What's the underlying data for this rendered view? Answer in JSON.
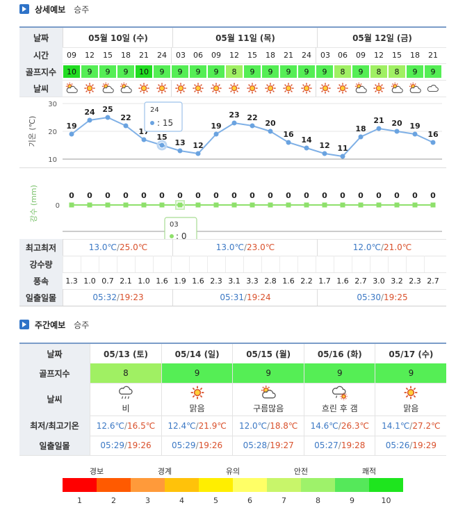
{
  "detail_section": {
    "title": "상세예보",
    "location": "승주"
  },
  "weekly_section": {
    "title": "주간예보",
    "location": "승주"
  },
  "row_labels": {
    "date": "날짜",
    "time": "시간",
    "golf": "골프지수",
    "weather": "날씨",
    "temp_axis": "기온 (℃)",
    "rain_axis": "강수 (mm)",
    "minmax": "최고최저",
    "precip": "강수량",
    "wind": "풍속",
    "sun": "일출일몰"
  },
  "days": [
    {
      "label": "05월 10일 (수)",
      "min": "13.0℃",
      "max": "25.0℃",
      "sunrise": "05:32",
      "sunset": "19:23"
    },
    {
      "label": "05월 11일 (목)",
      "min": "13.0℃",
      "max": "23.0℃",
      "sunrise": "05:31",
      "sunset": "19:24"
    },
    {
      "label": "05월 12일 (금)",
      "min": "12.0℃",
      "max": "21.0℃",
      "sunrise": "05:30",
      "sunset": "19:25"
    }
  ],
  "hours": [
    "09",
    "12",
    "15",
    "18",
    "21",
    "24",
    "03",
    "06",
    "09",
    "12",
    "15",
    "18",
    "21",
    "24",
    "03",
    "06",
    "09",
    "12",
    "15",
    "18",
    "21"
  ],
  "golf_index": [
    10,
    9,
    9,
    9,
    10,
    9,
    9,
    9,
    9,
    8,
    9,
    9,
    9,
    9,
    9,
    8,
    9,
    8,
    8,
    9,
    9
  ],
  "weather_icons": [
    "sun-cloud-icon",
    "sun-icon",
    "sun-cloud-icon",
    "sun-cloud-icon",
    "sun-icon",
    "sun-icon",
    "sun-icon",
    "sun-icon",
    "sun-icon",
    "sun-icon",
    "sun-icon",
    "sun-icon",
    "sun-icon",
    "sun-icon",
    "sun-icon",
    "sun-icon",
    "sun-cloud-icon",
    "sun-icon",
    "sun-cloud-icon",
    "sun-cloud-icon",
    "cloud-icon"
  ],
  "chart_data": [
    {
      "type": "line",
      "x": [
        "09",
        "12",
        "15",
        "18",
        "21",
        "24",
        "03",
        "06",
        "09",
        "12",
        "15",
        "18",
        "21",
        "24",
        "03",
        "06",
        "09",
        "12",
        "15",
        "18",
        "21"
      ],
      "series": [
        {
          "values": [
            19,
            24,
            25,
            22,
            17,
            15,
            13,
            12,
            19,
            23,
            22,
            20,
            16,
            14,
            12,
            11,
            18,
            21,
            20,
            19,
            16
          ]
        }
      ],
      "ylabel": "기온 (℃)",
      "yticks": [
        10,
        20,
        30
      ],
      "ylim": [
        10,
        30
      ],
      "tooltip": {
        "title": "24",
        "value": ": 15"
      }
    },
    {
      "type": "line",
      "x": [
        "09",
        "12",
        "15",
        "18",
        "21",
        "24",
        "03",
        "06",
        "09",
        "12",
        "15",
        "18",
        "21",
        "24",
        "03",
        "06",
        "09",
        "12",
        "15",
        "18",
        "21"
      ],
      "series": [
        {
          "values": [
            0,
            0,
            0,
            0,
            0,
            0,
            0,
            0,
            0,
            0,
            0,
            0,
            0,
            0,
            0,
            0,
            0,
            0,
            0,
            0,
            0
          ]
        }
      ],
      "ylabel": "강수 (mm)",
      "yticks": [
        0
      ],
      "tooltip": {
        "title": "03",
        "value": ": 0"
      }
    }
  ],
  "wind": [
    "1.3",
    "1.0",
    "0.7",
    "2.1",
    "1.0",
    "1.6",
    "1.9",
    "1.6",
    "2.3",
    "3.1",
    "3.3",
    "2.8",
    "1.6",
    "2.2",
    "1.7",
    "1.6",
    "2.7",
    "3.0",
    "3.2",
    "2.3",
    "2.7"
  ],
  "weekly": {
    "labels": {
      "date": "날짜",
      "golf": "골프지수",
      "weather": "날씨",
      "temp": "최저/최고기온",
      "sun": "일출일몰"
    },
    "days": [
      {
        "date": "05/13 (토)",
        "golf": "8",
        "icon": "rain-cloud-icon",
        "desc": "비",
        "min": "12.6℃",
        "max": "16.5℃",
        "sunrise": "05:29",
        "sunset": "19:26"
      },
      {
        "date": "05/14 (일)",
        "golf": "9",
        "icon": "sun-icon",
        "desc": "맑음",
        "min": "12.4℃",
        "max": "21.9℃",
        "sunrise": "05:29",
        "sunset": "19:26"
      },
      {
        "date": "05/15 (월)",
        "golf": "9",
        "icon": "sun-cloud-icon",
        "desc": "구름많음",
        "min": "12.0℃",
        "max": "18.8℃",
        "sunrise": "05:28",
        "sunset": "19:27"
      },
      {
        "date": "05/16 (화)",
        "golf": "9",
        "icon": "cloud-rain-sun-icon",
        "desc": "흐린 후 갬",
        "min": "14.6℃",
        "max": "26.3℃",
        "sunrise": "05:27",
        "sunset": "19:28"
      },
      {
        "date": "05/17 (수)",
        "golf": "9",
        "icon": "sun-icon",
        "desc": "맑음",
        "min": "14.1℃",
        "max": "27.2℃",
        "sunrise": "05:26",
        "sunset": "19:29"
      }
    ]
  },
  "legend": {
    "categories": [
      "경보",
      "경계",
      "유의",
      "안전",
      "쾌적"
    ],
    "numbers": [
      "1",
      "2",
      "3",
      "4",
      "5",
      "6",
      "7",
      "8",
      "9",
      "10"
    ],
    "colors": [
      "#ff0000",
      "#ff5a00",
      "#ff9a3a",
      "#ffc20a",
      "#ffee00",
      "#ffff66",
      "#c8f56a",
      "#9ef26a",
      "#55e85a",
      "#1ee51e"
    ]
  },
  "colors": {
    "golf_10": "#22dd22",
    "golf_9": "#55ee55",
    "golf_8": "#a0f063",
    "weekly_golf_8": "#a0f063",
    "weekly_golf_9": "#55ee55",
    "line": "#7fb0e6",
    "point": "#6aa3e0",
    "rain_line": "#8ee06b"
  }
}
